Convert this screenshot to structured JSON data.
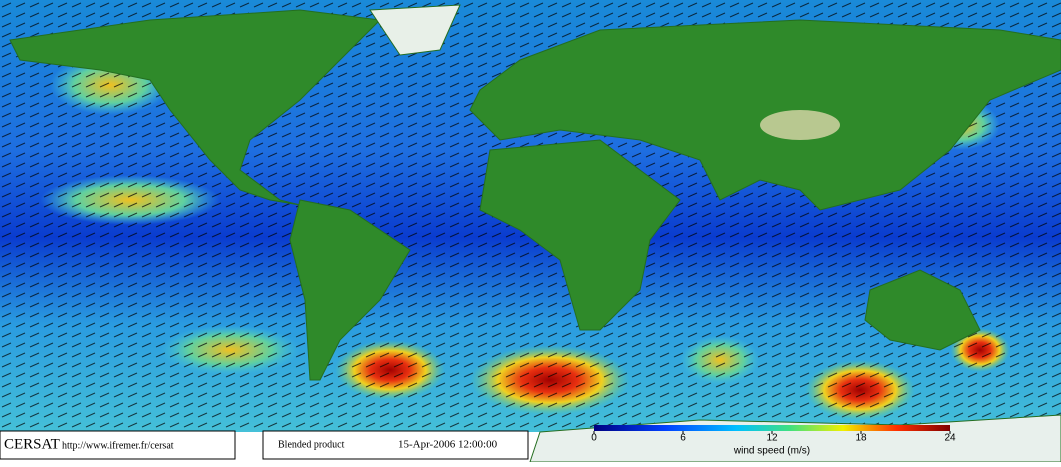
{
  "footer": {
    "logo": "CERSAT",
    "url": "http://www.ifremer.fr/cersat",
    "product": "Blended product",
    "date": "15-Apr-2006 12:00:00"
  },
  "colorbar": {
    "label": "wind speed (m/s)",
    "lim": [
      0,
      24
    ],
    "ticks": [
      0,
      6,
      12,
      18,
      24
    ]
  }
}
